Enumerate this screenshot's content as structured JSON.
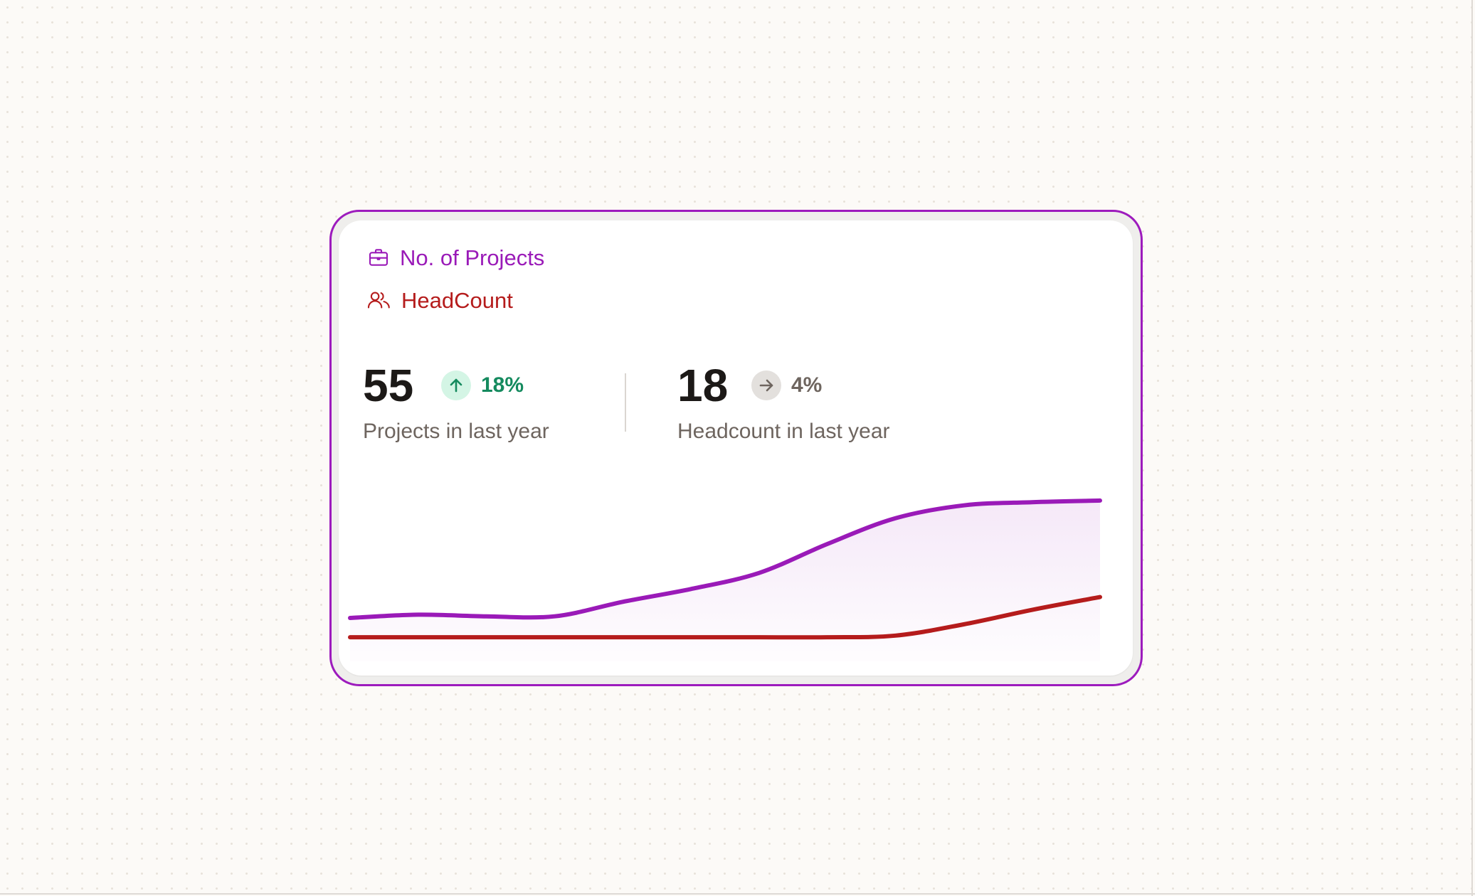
{
  "legend": {
    "projects": {
      "label": "No. of Projects",
      "icon": "briefcase-icon",
      "color": "#9a1ab8"
    },
    "headcount": {
      "label": "HeadCount",
      "icon": "users-icon",
      "color": "#b51c1c"
    }
  },
  "stats": {
    "projects": {
      "value": "55",
      "change": "18%",
      "trend": "up",
      "trend_icon": "arrow-up-icon",
      "caption": "Projects in last year"
    },
    "headcount": {
      "value": "18",
      "change": "4%",
      "trend": "flat",
      "trend_icon": "arrow-right-icon",
      "caption": "Headcount in last year"
    }
  },
  "colors": {
    "accent_purple": "#9a1ab8",
    "accent_red": "#b51c1c",
    "positive_green": "#148a5e",
    "neutral_gray": "#6e655f"
  },
  "chart_data": {
    "type": "area",
    "x": [
      0,
      1,
      2,
      3,
      4,
      5,
      6,
      7,
      8,
      9,
      10,
      11
    ],
    "series": [
      {
        "name": "No. of Projects",
        "values": [
          0.12,
          0.14,
          0.13,
          0.13,
          0.22,
          0.3,
          0.4,
          0.58,
          0.74,
          0.82,
          0.84,
          0.85
        ],
        "color": "#9a1ab8",
        "filled": true
      },
      {
        "name": "HeadCount",
        "values": [
          0,
          0,
          0,
          0,
          0,
          0,
          0,
          0,
          0.01,
          0.08,
          0.17,
          0.25
        ],
        "color": "#b51c1c",
        "filled": false
      }
    ],
    "ylim": [
      -0.15,
      1
    ],
    "grid": false,
    "axes_visible": false
  }
}
